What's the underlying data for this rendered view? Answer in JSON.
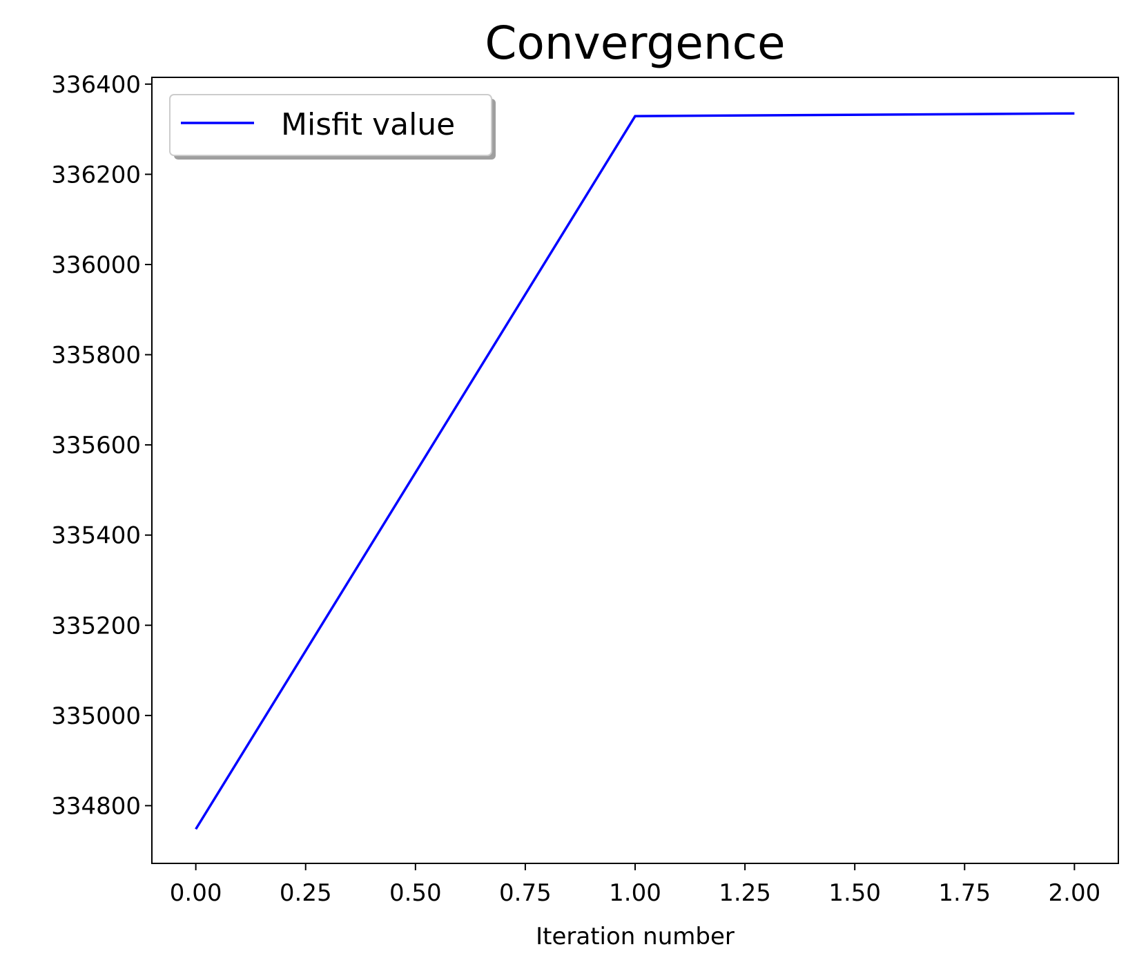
{
  "chart_data": {
    "type": "line",
    "title": "Convergence",
    "xlabel": "Iteration number",
    "ylabel": "",
    "x": [
      0,
      1,
      2
    ],
    "series": [
      {
        "name": "Misfit value",
        "values": [
          334748,
          336329,
          336335
        ],
        "color": "#0000ff"
      }
    ],
    "xlim": [
      -0.1,
      2.1
    ],
    "ylim": [
      334672,
      336415
    ],
    "xticks": [
      0.0,
      0.25,
      0.5,
      0.75,
      1.0,
      1.25,
      1.5,
      1.75,
      2.0
    ],
    "xtick_labels": [
      "0.00",
      "0.25",
      "0.50",
      "0.75",
      "1.00",
      "1.25",
      "1.50",
      "1.75",
      "2.00"
    ],
    "yticks": [
      334800,
      335000,
      335200,
      335400,
      335600,
      335800,
      336000,
      336200,
      336400
    ],
    "ytick_labels": [
      "334800",
      "335000",
      "335200",
      "335400",
      "335600",
      "335800",
      "336000",
      "336200",
      "336400"
    ],
    "grid": false,
    "legend": {
      "placement": "upper-left",
      "shadow": true
    }
  }
}
